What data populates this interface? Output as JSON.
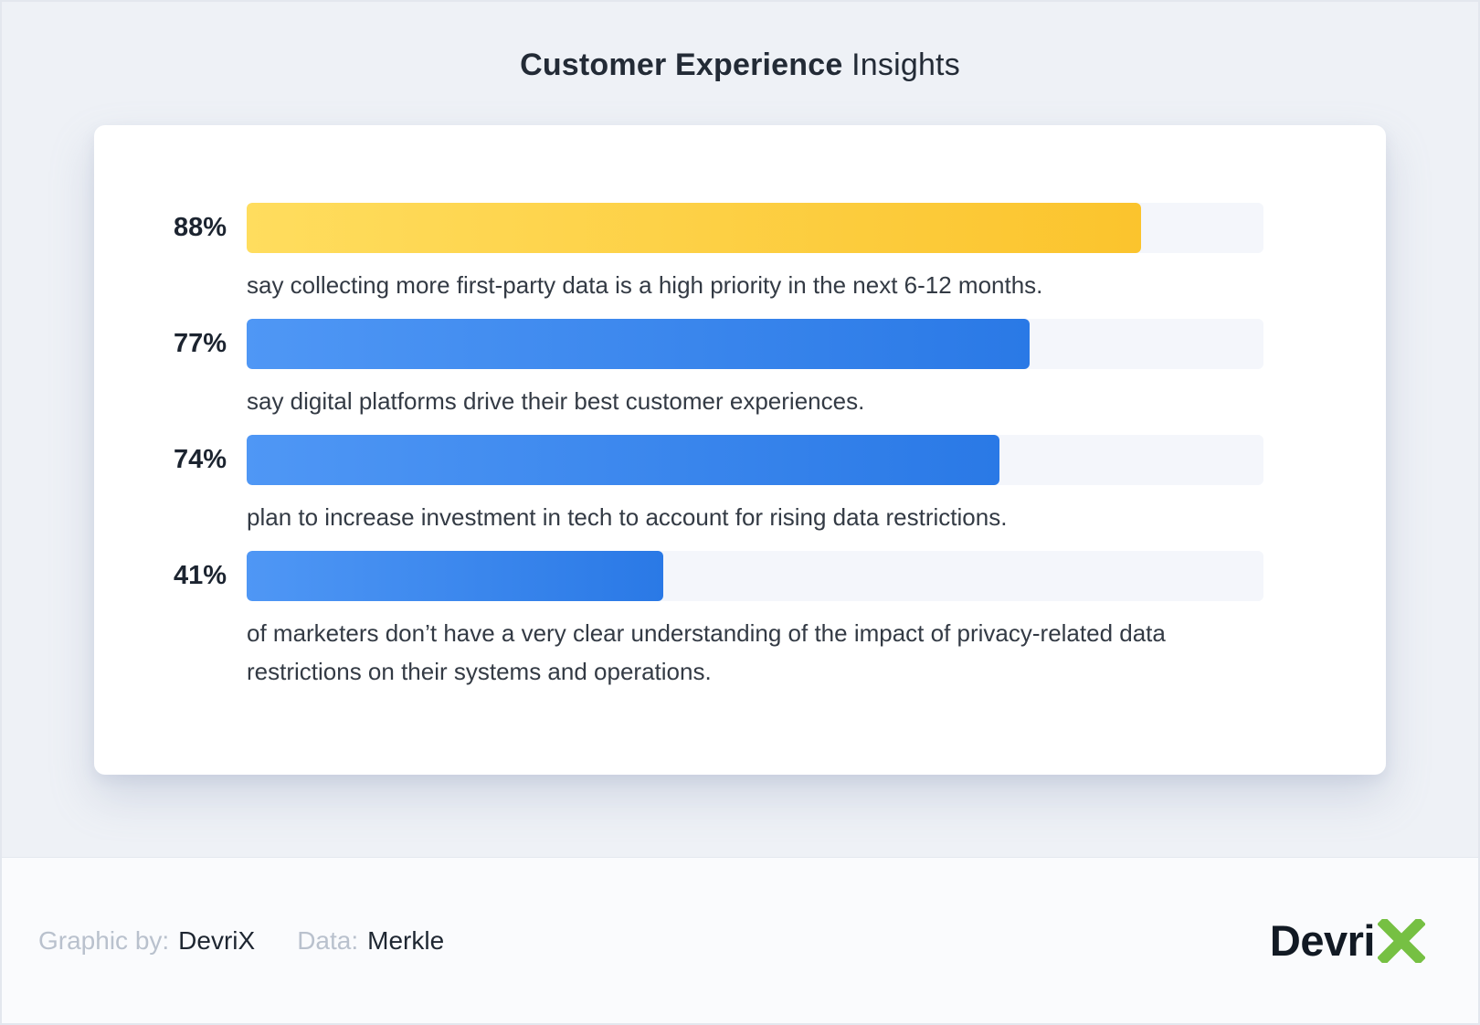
{
  "title": {
    "bold": "Customer Experience",
    "light": "Insights"
  },
  "chart_data": {
    "type": "bar",
    "orientation": "horizontal",
    "xlim": [
      0,
      100
    ],
    "grid": false,
    "items": [
      {
        "value": 88,
        "label": "88%",
        "gradient": [
          "#ffdd5e",
          "#fbc42d"
        ],
        "description": "say collecting more first-party data is a high priority in the next 6-12 months."
      },
      {
        "value": 77,
        "label": "77%",
        "gradient": [
          "#4f97f5",
          "#2a79e6"
        ],
        "description": "say digital platforms drive their best customer experiences."
      },
      {
        "value": 74,
        "label": "74%",
        "gradient": [
          "#4f97f5",
          "#2a79e6"
        ],
        "description": "plan to increase investment in tech to account for rising data restrictions."
      },
      {
        "value": 41,
        "label": "41%",
        "gradient": [
          "#4f97f5",
          "#2a79e6"
        ],
        "description": "of marketers don’t have a very clear understanding of the impact of privacy-related data restrictions on their systems and operations."
      }
    ]
  },
  "colors": {
    "bar_track": "#f4f6fb",
    "accent_yellow": "#fbc42d",
    "accent_blue": "#2a79e6",
    "logo_green": "#76c043"
  },
  "footer": {
    "graphic_by_label": "Graphic by:",
    "graphic_by_value": "DevriX",
    "data_label": "Data:",
    "data_value": "Merkle",
    "logo_text": "Devri"
  }
}
